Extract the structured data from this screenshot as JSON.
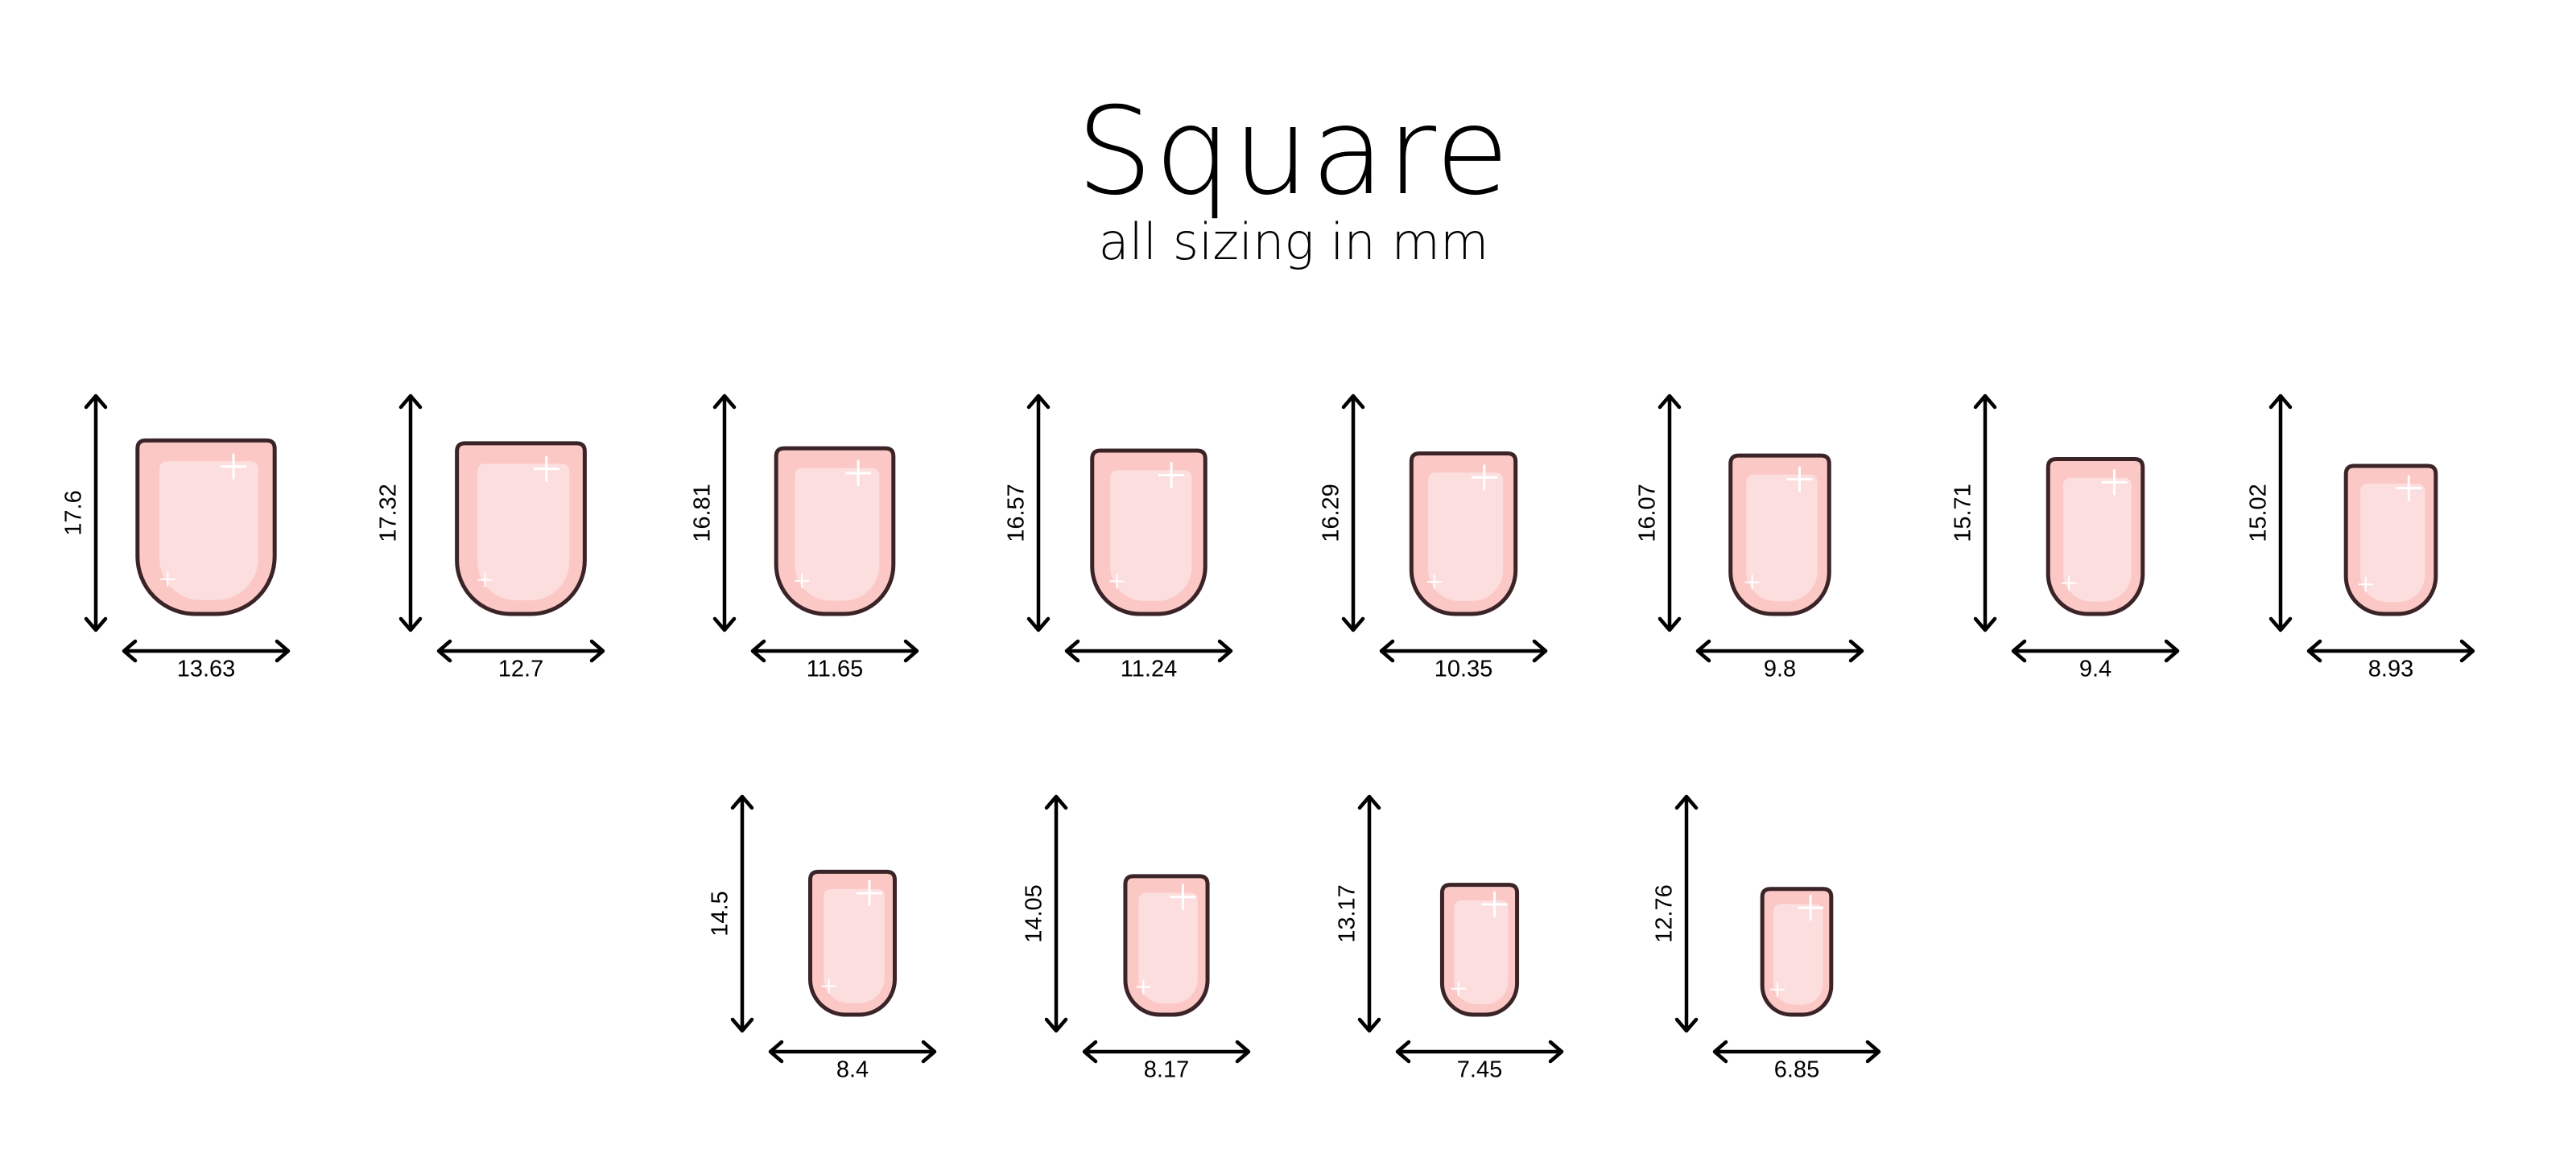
{
  "header": {
    "title": "Square",
    "subtitle": "all sizing in mm"
  },
  "nails": [
    {
      "length": 17.6,
      "width": 13.63
    },
    {
      "length": 17.32,
      "width": 12.7
    },
    {
      "length": 16.81,
      "width": 11.65
    },
    {
      "length": 16.57,
      "width": 11.24
    },
    {
      "length": 16.29,
      "width": 10.35
    },
    {
      "length": 16.07,
      "width": 9.8
    },
    {
      "length": 15.71,
      "width": 9.4
    },
    {
      "length": 15.02,
      "width": 8.93
    },
    {
      "length": 14.5,
      "width": 8.4
    },
    {
      "length": 14.05,
      "width": 8.17
    },
    {
      "length": 13.17,
      "width": 7.45
    },
    {
      "length": 12.76,
      "width": 6.85
    }
  ]
}
